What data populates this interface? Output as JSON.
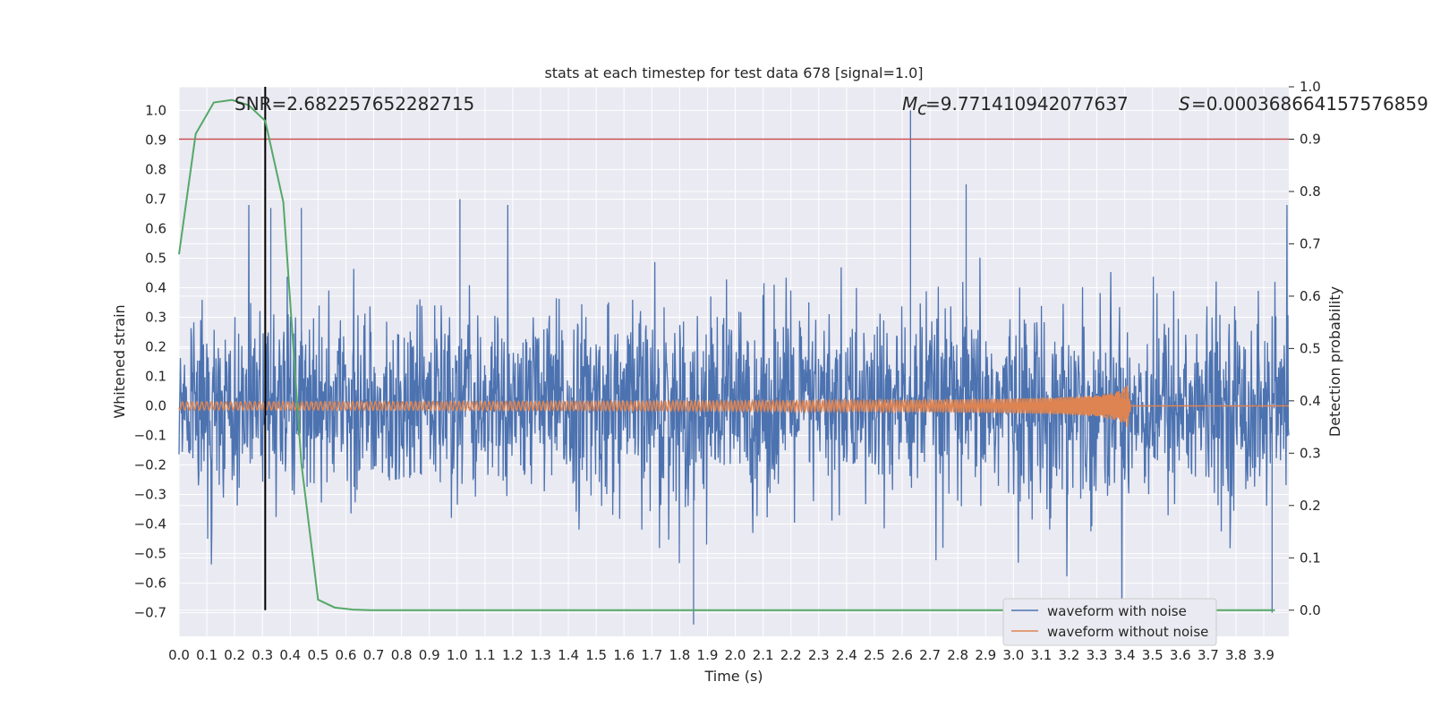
{
  "chart_data": {
    "type": "line",
    "title": "stats at each timestep for test data 678 [signal=1.0]",
    "xlabel": "Time (s)",
    "ylabel_left": "Whitened strain",
    "ylabel_right": "Detection probability",
    "xlim": [
      0.0,
      3.99
    ],
    "ylim_left": [
      -0.78,
      1.08
    ],
    "ylim_right": [
      -0.05,
      1.0
    ],
    "x_ticks": [
      "0.0",
      "0.1",
      "0.2",
      "0.3",
      "0.4",
      "0.5",
      "0.6",
      "0.7",
      "0.8",
      "0.9",
      "1.0",
      "1.1",
      "1.2",
      "1.3",
      "1.4",
      "1.5",
      "1.6",
      "1.7",
      "1.8",
      "1.9",
      "2.0",
      "2.1",
      "2.2",
      "2.3",
      "2.4",
      "2.5",
      "2.6",
      "2.7",
      "2.8",
      "2.9",
      "3.0",
      "3.1",
      "3.2",
      "3.3",
      "3.4",
      "3.5",
      "3.6",
      "3.7",
      "3.8",
      "3.9"
    ],
    "y_ticks_left": [
      "1.0",
      "0.9",
      "0.8",
      "0.7",
      "0.6",
      "0.5",
      "0.4",
      "0.3",
      "0.2",
      "0.1",
      "0.0",
      "−0.1",
      "−0.2",
      "−0.3",
      "−0.4",
      "−0.5",
      "−0.6",
      "−0.7"
    ],
    "y_ticks_right": [
      "1.0",
      "0.9",
      "0.8",
      "0.7",
      "0.6",
      "0.5",
      "0.4",
      "0.3",
      "0.2",
      "0.1",
      "0.0"
    ],
    "annotations": {
      "snr": "SNR=2.682257652282715",
      "mc": "=9.771410942077637",
      "s": "=0.000368664157576859"
    },
    "legend": {
      "position": "lower right",
      "entries": [
        "waveform with noise",
        "waveform without noise"
      ]
    },
    "colors": {
      "noise": "#4c72b0",
      "clean": "#dd8452",
      "prob": "#55a868",
      "threshold": "#c44e52",
      "marker": "#000000",
      "background": "#eaeaf2",
      "grid": "#ffffff"
    },
    "threshold_probability": 0.9,
    "vertical_marker_time": 0.31,
    "detection_probability": {
      "x": [
        0.0,
        0.06,
        0.125,
        0.19,
        0.25,
        0.31,
        0.375,
        0.44,
        0.5,
        0.56,
        0.625,
        0.69,
        1.0,
        2.0,
        3.0,
        3.94
      ],
      "y": [
        0.68,
        0.91,
        0.97,
        0.975,
        0.965,
        0.935,
        0.78,
        0.28,
        0.02,
        0.005,
        0.001,
        0.0,
        0.0,
        0.0,
        0.0,
        0.0
      ]
    },
    "series": [
      {
        "name": "waveform with noise",
        "description_only": true
      },
      {
        "name": "waveform without noise",
        "description_only": true
      }
    ]
  }
}
